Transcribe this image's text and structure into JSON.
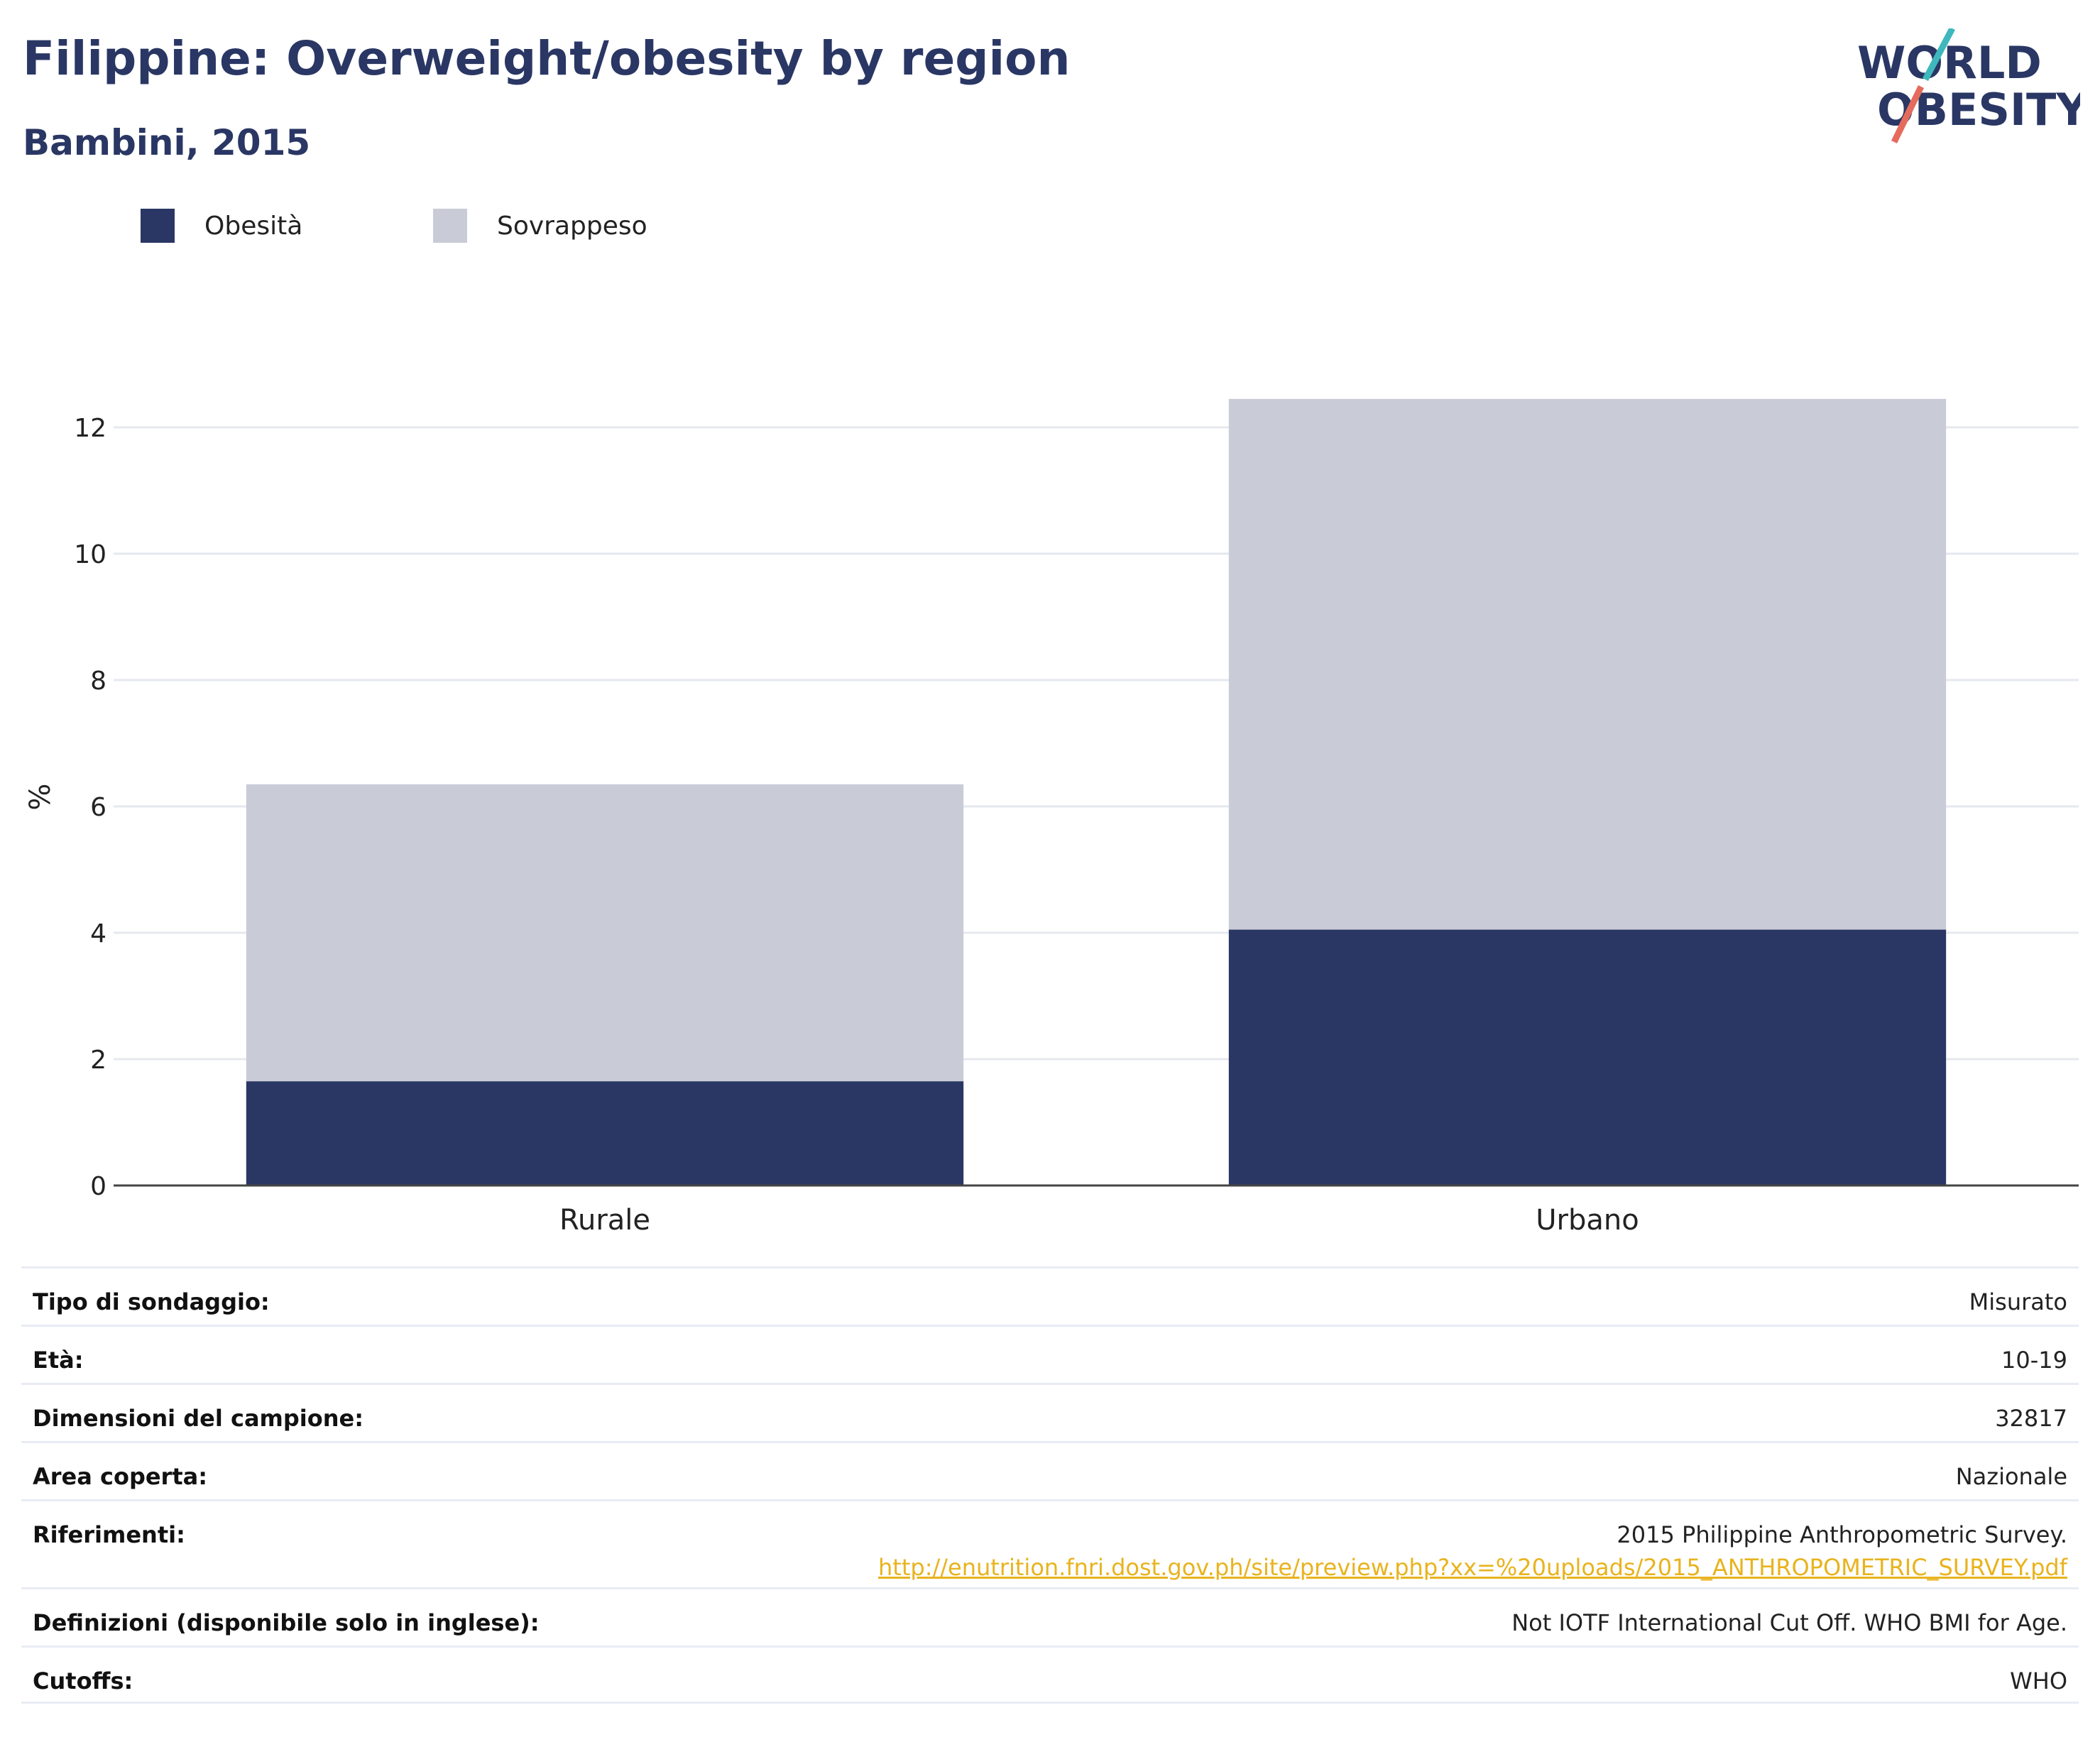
{
  "header": {
    "title": "Filippine: Overweight/obesity by region",
    "subtitle": "Bambini, 2015"
  },
  "logo": {
    "line1": "WORLD",
    "line2": "OBESITY"
  },
  "legend": [
    {
      "label": "Obesità",
      "color": "#2a3764"
    },
    {
      "label": "Sovrappeso",
      "color": "#c9ccd7"
    }
  ],
  "chart_data": {
    "type": "bar",
    "stacked": true,
    "categories": [
      "Rurale",
      "Urbano"
    ],
    "series": [
      {
        "name": "Obesità",
        "values": [
          1.65,
          4.05
        ],
        "color": "#2a3764"
      },
      {
        "name": "Sovrappeso",
        "values": [
          4.7,
          8.4
        ],
        "color": "#c9ccd7"
      }
    ],
    "ylabel": "%",
    "ylim": [
      0,
      13
    ],
    "yticks": [
      0,
      2,
      4,
      6,
      8,
      10,
      12
    ],
    "grid": true,
    "legend_position": "top-left"
  },
  "info": [
    {
      "key": "Tipo di sondaggio:",
      "value": "Misurato"
    },
    {
      "key": "Età:",
      "value": "10-19"
    },
    {
      "key": "Dimensioni del campione:",
      "value": "32817"
    },
    {
      "key": "Area coperta:",
      "value": "Nazionale"
    },
    {
      "key": "Riferimenti:",
      "value": "2015 Philippine Anthropometric Survey.",
      "link": "http://enutrition.fnri.dost.gov.ph/site/preview.php?xx=%20uploads/2015_ANTHROPOMETRIC_SURVEY.pdf"
    },
    {
      "key": "Definizioni (disponibile solo in inglese):",
      "value": "Not IOTF International Cut Off. WHO BMI for Age."
    },
    {
      "key": "Cutoffs:",
      "value": "WHO"
    }
  ]
}
